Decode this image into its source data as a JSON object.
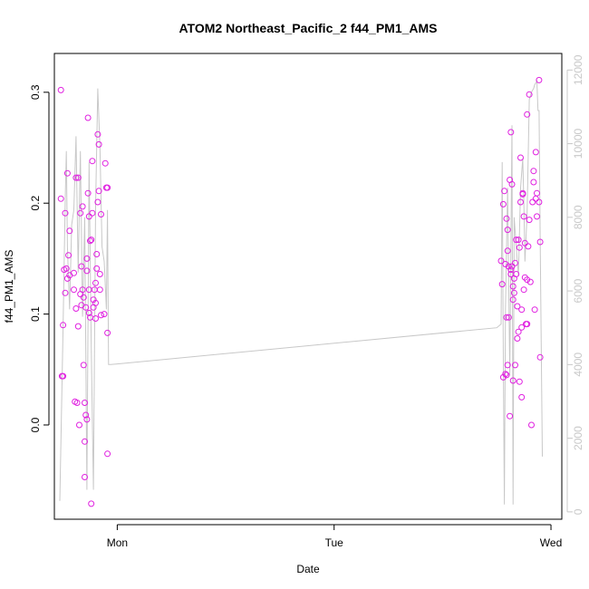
{
  "chart_data": {
    "type": "scatter",
    "title": "ATOM2 Northeast_Pacific_2 f44_PM1_AMS",
    "xlabel": "Date",
    "ylabel": "f44_PM1_AMS",
    "x_axis": {
      "unit": "days",
      "range": [
        -0.29,
        2.05
      ],
      "ticks": [
        {
          "value": 0,
          "label": "Mon"
        },
        {
          "value": 1,
          "label": "Tue"
        },
        {
          "value": 2,
          "label": "Wed"
        }
      ]
    },
    "y_axis_left": {
      "range": [
        -0.085,
        0.335
      ],
      "ticks": [
        {
          "value": 0.0,
          "label": "0.0"
        },
        {
          "value": 0.1,
          "label": "0.1"
        },
        {
          "value": 0.2,
          "label": "0.2"
        },
        {
          "value": 0.3,
          "label": "0.3"
        }
      ]
    },
    "y_axis_right": {
      "range": [
        -200,
        12450
      ],
      "color": "#c8c8c8",
      "ticks": [
        {
          "value": 0,
          "label": "0"
        },
        {
          "value": 2000,
          "label": "2000"
        },
        {
          "value": 4000,
          "label": "4000"
        },
        {
          "value": 6000,
          "label": "6000"
        },
        {
          "value": 8000,
          "label": "8000"
        },
        {
          "value": 10000,
          "label": "10000"
        },
        {
          "value": 12000,
          "label": "12000"
        }
      ]
    },
    "grid": false,
    "series": [
      {
        "kind": "points",
        "color": "#e020e0",
        "marker": "open-circle",
        "axis": "left",
        "points": [
          [
            -0.26,
            0.302
          ],
          [
            -0.26,
            0.204
          ],
          [
            -0.255,
            0.044
          ],
          [
            -0.25,
            0.09
          ],
          [
            -0.25,
            0.044
          ],
          [
            -0.245,
            0.14
          ],
          [
            -0.24,
            0.191
          ],
          [
            -0.24,
            0.119
          ],
          [
            -0.235,
            0.141
          ],
          [
            -0.23,
            0.227
          ],
          [
            -0.23,
            0.132
          ],
          [
            -0.225,
            0.153
          ],
          [
            -0.22,
            0.175
          ],
          [
            -0.22,
            0.135
          ],
          [
            -0.2,
            0.137
          ],
          [
            -0.2,
            0.122
          ],
          [
            -0.195,
            0.021
          ],
          [
            -0.19,
            0.223
          ],
          [
            -0.19,
            0.105
          ],
          [
            -0.185,
            0.02
          ],
          [
            -0.18,
            0.223
          ],
          [
            -0.18,
            0.089
          ],
          [
            -0.175,
            0.0
          ],
          [
            -0.17,
            0.191
          ],
          [
            -0.17,
            0.118
          ],
          [
            -0.165,
            0.143
          ],
          [
            -0.165,
            0.108
          ],
          [
            -0.16,
            0.197
          ],
          [
            -0.16,
            0.122
          ],
          [
            -0.155,
            0.115
          ],
          [
            -0.155,
            0.054
          ],
          [
            -0.15,
            -0.047
          ],
          [
            -0.15,
            -0.015
          ],
          [
            -0.15,
            0.02
          ],
          [
            -0.145,
            0.106
          ],
          [
            -0.145,
            0.009
          ],
          [
            -0.14,
            0.005
          ],
          [
            -0.14,
            0.15
          ],
          [
            -0.14,
            0.139
          ],
          [
            -0.135,
            0.277
          ],
          [
            -0.135,
            0.209
          ],
          [
            -0.13,
            0.188
          ],
          [
            -0.13,
            0.122
          ],
          [
            -0.13,
            0.101
          ],
          [
            -0.125,
            0.097
          ],
          [
            -0.125,
            0.166
          ],
          [
            -0.12,
            0.167
          ],
          [
            -0.12,
            -0.071
          ],
          [
            -0.115,
            0.238
          ],
          [
            -0.115,
            0.191
          ],
          [
            -0.11,
            0.113
          ],
          [
            -0.11,
            0.106
          ],
          [
            -0.105,
            0.122
          ],
          [
            -0.1,
            0.128
          ],
          [
            -0.1,
            0.11
          ],
          [
            -0.1,
            0.096
          ],
          [
            -0.095,
            0.141
          ],
          [
            -0.095,
            0.154
          ],
          [
            -0.09,
            0.262
          ],
          [
            -0.09,
            0.201
          ],
          [
            -0.085,
            0.253
          ],
          [
            -0.085,
            0.211
          ],
          [
            -0.08,
            0.122
          ],
          [
            -0.08,
            0.136
          ],
          [
            -0.075,
            0.19
          ],
          [
            -0.075,
            0.099
          ],
          [
            -0.06,
            0.1
          ],
          [
            -0.055,
            0.236
          ],
          [
            -0.05,
            0.214
          ],
          [
            -0.045,
            0.214
          ],
          [
            -0.045,
            0.083
          ],
          [
            -0.045,
            -0.026
          ],
          [
            1.77,
            0.148
          ],
          [
            1.775,
            0.127
          ],
          [
            1.78,
            0.043
          ],
          [
            1.78,
            0.199
          ],
          [
            1.785,
            0.211
          ],
          [
            1.79,
            0.046
          ],
          [
            1.79,
            0.145
          ],
          [
            1.795,
            0.186
          ],
          [
            1.795,
            0.097
          ],
          [
            1.795,
            0.045
          ],
          [
            1.8,
            0.054
          ],
          [
            1.8,
            0.176
          ],
          [
            1.8,
            0.157
          ],
          [
            1.805,
            0.143
          ],
          [
            1.805,
            0.097
          ],
          [
            1.81,
            0.008
          ],
          [
            1.81,
            0.221
          ],
          [
            1.815,
            0.136
          ],
          [
            1.815,
            0.14
          ],
          [
            1.815,
            0.264
          ],
          [
            1.82,
            0.143
          ],
          [
            1.82,
            0.217
          ],
          [
            1.825,
            0.113
          ],
          [
            1.825,
            0.125
          ],
          [
            1.825,
            0.04
          ],
          [
            1.83,
            0.119
          ],
          [
            1.83,
            0.132
          ],
          [
            1.835,
            0.146
          ],
          [
            1.835,
            0.054
          ],
          [
            1.84,
            0.136
          ],
          [
            1.84,
            0.167
          ],
          [
            1.845,
            0.107
          ],
          [
            1.845,
            0.078
          ],
          [
            1.85,
            0.084
          ],
          [
            1.85,
            0.167
          ],
          [
            1.855,
            0.039
          ],
          [
            1.855,
            0.16
          ],
          [
            1.86,
            0.201
          ],
          [
            1.86,
            0.241
          ],
          [
            1.865,
            0.088
          ],
          [
            1.865,
            0.104
          ],
          [
            1.865,
            0.025
          ],
          [
            1.87,
            0.208
          ],
          [
            1.87,
            0.209
          ],
          [
            1.875,
            0.122
          ],
          [
            1.875,
            0.188
          ],
          [
            1.88,
            0.133
          ],
          [
            1.88,
            0.164
          ],
          [
            1.885,
            0.091
          ],
          [
            1.89,
            0.131
          ],
          [
            1.89,
            0.091
          ],
          [
            1.89,
            0.28
          ],
          [
            1.895,
            0.161
          ],
          [
            1.9,
            0.185
          ],
          [
            1.9,
            0.298
          ],
          [
            1.905,
            0.129
          ],
          [
            1.91,
            0.0
          ],
          [
            1.915,
            0.201
          ],
          [
            1.92,
            0.219
          ],
          [
            1.92,
            0.229
          ],
          [
            1.925,
            0.104
          ],
          [
            1.93,
            0.204
          ],
          [
            1.93,
            0.246
          ],
          [
            1.935,
            0.188
          ],
          [
            1.935,
            0.209
          ],
          [
            1.945,
            0.311
          ],
          [
            1.945,
            0.201
          ],
          [
            1.95,
            0.165
          ],
          [
            1.95,
            0.061
          ]
        ]
      },
      {
        "kind": "line",
        "color": "#c8c8c8",
        "axis": "right",
        "points": [
          [
            -0.265,
            300
          ],
          [
            -0.25,
            5000
          ],
          [
            -0.24,
            8500
          ],
          [
            -0.235,
            9800
          ],
          [
            -0.23,
            7200
          ],
          [
            -0.22,
            5500
          ],
          [
            -0.21,
            7800
          ],
          [
            -0.2,
            8200
          ],
          [
            -0.19,
            10200
          ],
          [
            -0.18,
            6500
          ],
          [
            -0.17,
            9800
          ],
          [
            -0.16,
            5300
          ],
          [
            -0.15,
            8000
          ],
          [
            -0.14,
            600
          ],
          [
            -0.13,
            9500
          ],
          [
            -0.12,
            4500
          ],
          [
            -0.11,
            600
          ],
          [
            -0.1,
            8300
          ],
          [
            -0.09,
            11500
          ],
          [
            -0.08,
            9900
          ],
          [
            -0.07,
            7200
          ],
          [
            -0.06,
            6800
          ],
          [
            -0.05,
            5500
          ],
          [
            -0.045,
            8200
          ],
          [
            -0.04,
            4000
          ],
          [
            -0.03,
            4000
          ],
          [
            1.75,
            5000
          ],
          [
            1.77,
            5100
          ],
          [
            1.775,
            9500
          ],
          [
            1.78,
            4400
          ],
          [
            1.785,
            200
          ],
          [
            1.79,
            5500
          ],
          [
            1.8,
            8800
          ],
          [
            1.81,
            3700
          ],
          [
            1.82,
            10500
          ],
          [
            1.825,
            200
          ],
          [
            1.83,
            8000
          ],
          [
            1.84,
            7200
          ],
          [
            1.85,
            6400
          ],
          [
            1.86,
            8800
          ],
          [
            1.87,
            9600
          ],
          [
            1.875,
            8400
          ],
          [
            1.88,
            6800
          ],
          [
            1.89,
            8100
          ],
          [
            1.9,
            11200
          ],
          [
            1.91,
            11400
          ],
          [
            1.92,
            11500
          ],
          [
            1.925,
            11600
          ],
          [
            1.935,
            11700
          ],
          [
            1.94,
            10900
          ],
          [
            1.945,
            10900
          ],
          [
            1.95,
            7500
          ],
          [
            1.96,
            1500
          ]
        ]
      }
    ]
  }
}
